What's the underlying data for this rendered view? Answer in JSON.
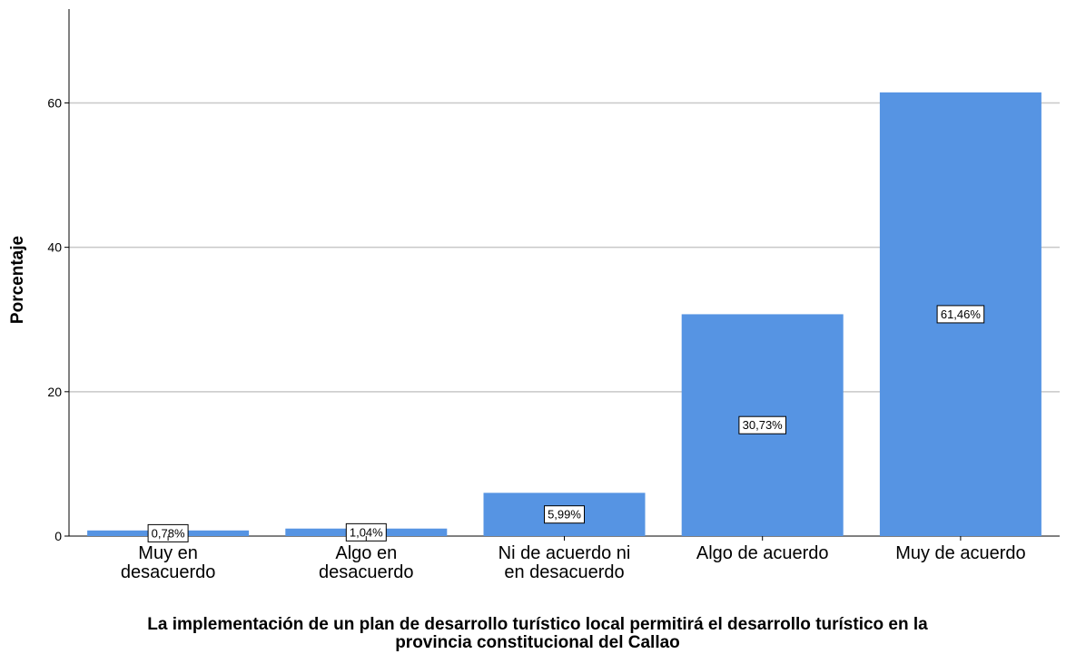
{
  "chart_data": {
    "type": "bar",
    "categories": [
      [
        "Muy en",
        "desacuerdo"
      ],
      [
        "Algo en",
        "desacuerdo"
      ],
      [
        "Ni de acuerdo ni",
        "en desacuerdo"
      ],
      [
        "Algo de acuerdo"
      ],
      [
        "Muy de acuerdo"
      ]
    ],
    "values": [
      0.78,
      1.04,
      5.99,
      30.73,
      61.46
    ],
    "data_labels": [
      "0,78%",
      "1,04%",
      "5,99%",
      "30,73%",
      "61,46%"
    ],
    "ylabel": "Porcentaje",
    "xlabel": [
      "La implementación de un plan de desarrollo turístico local permitirá el desarrollo turístico en la",
      "provincia constitucional del Callao"
    ],
    "yticks": [
      0,
      20,
      40,
      60
    ],
    "ylim": [
      0,
      73
    ],
    "grid": true,
    "bar_color": "#5694e3",
    "grid_color": "#c8c8c8"
  }
}
